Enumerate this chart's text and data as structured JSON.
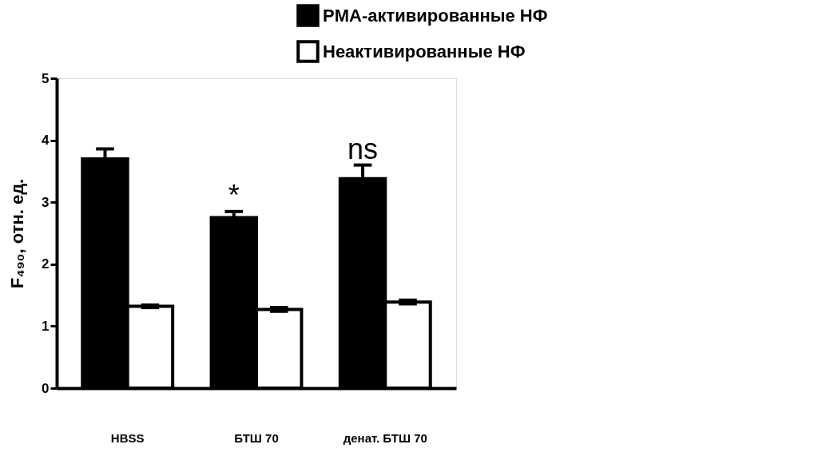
{
  "chart_data": {
    "type": "bar",
    "ylabel": "F₄₉₀, отн. ед.",
    "categories": [
      "HBSS",
      "БТШ 70",
      "денат. БТШ 70"
    ],
    "series": [
      {
        "name": "PMA-активированные НФ",
        "color": "#000000",
        "values": [
          3.7,
          2.75,
          3.38
        ],
        "errors": [
          0.16,
          0.1,
          0.22
        ]
      },
      {
        "name": "Неактивированные НФ",
        "color": "#ffffff",
        "values": [
          1.32,
          1.27,
          1.39
        ],
        "errors": [
          0.02,
          0.03,
          0.03
        ]
      }
    ],
    "ylim": [
      0,
      5
    ],
    "yticks": [
      0,
      1,
      2,
      3,
      4,
      5
    ],
    "grid": false,
    "legend": "top right",
    "annotations": [
      "*",
      "ns"
    ]
  }
}
